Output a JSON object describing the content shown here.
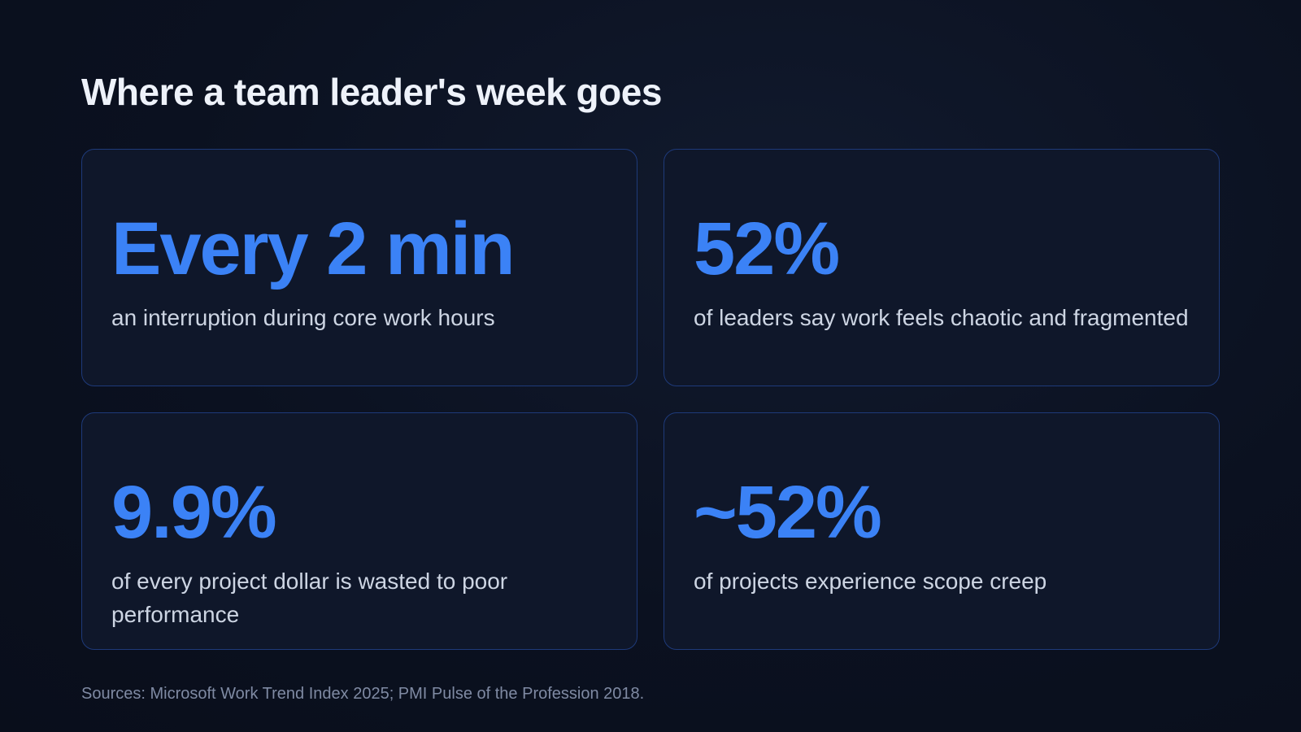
{
  "slide": {
    "title": "Where a team leader's week goes",
    "cards": [
      {
        "stat": "Every 2 min",
        "description": "an interruption during core work hours"
      },
      {
        "stat": "52%",
        "description": "of leaders say work feels chaotic and fragmented"
      },
      {
        "stat": "9.9%",
        "description": "of every project dollar is wasted to poor performance"
      },
      {
        "stat": "~52%",
        "description": "of projects experience scope creep"
      }
    ],
    "sources": "Sources: Microsoft Work Trend Index 2025; PMI Pulse of the Profession 2018."
  },
  "colors": {
    "background": "#0b1120",
    "card_background": "#0f172a",
    "card_border": "#1e3a7a",
    "accent": "#3b82f6",
    "text": "#cdd5e3",
    "muted": "#7f8aa3"
  }
}
